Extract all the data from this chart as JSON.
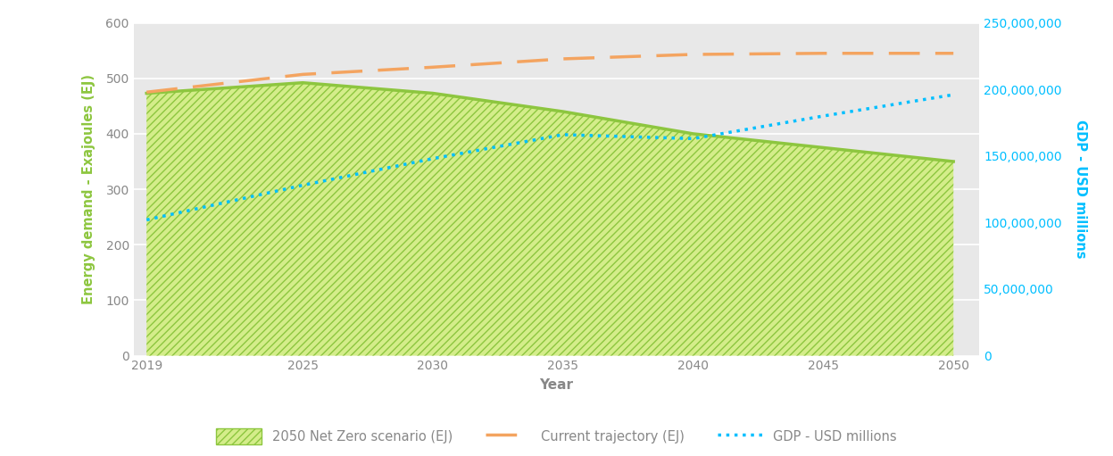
{
  "years": [
    2019,
    2025,
    2030,
    2035,
    2040,
    2045,
    2050
  ],
  "net_zero_ej": [
    473,
    492,
    473,
    440,
    400,
    375,
    350
  ],
  "current_traj_ej": [
    475,
    507,
    520,
    535,
    543,
    545,
    545
  ],
  "gdp_usd": [
    102000000,
    128000000,
    148000000,
    166000000,
    163000000,
    180000000,
    196000000
  ],
  "ylim_left": [
    0,
    600
  ],
  "ylim_right": [
    0,
    250000000
  ],
  "yticks_left": [
    0,
    100,
    200,
    300,
    400,
    500,
    600
  ],
  "yticks_right": [
    0,
    50000000,
    100000000,
    150000000,
    200000000,
    250000000
  ],
  "ylabel_left": "Energy demand - Exajoules (EJ)",
  "ylabel_right": "GDP - USD millions",
  "xlabel": "Year",
  "bg_color": "#e8e8e8",
  "net_zero_color": "#8dc63f",
  "net_zero_edge_color": "#8dc63f",
  "current_traj_color": "#f4a460",
  "gdp_color": "#00bfff",
  "hatch_pattern": "////",
  "legend_labels": [
    "2050 Net Zero scenario (EJ)",
    "Current trajectory (EJ)",
    "GDP - USD millions"
  ],
  "left_label_color": "#8dc63f",
  "right_label_color": "#00bfff",
  "tick_color": "#888888",
  "xlabel_color": "#888888"
}
